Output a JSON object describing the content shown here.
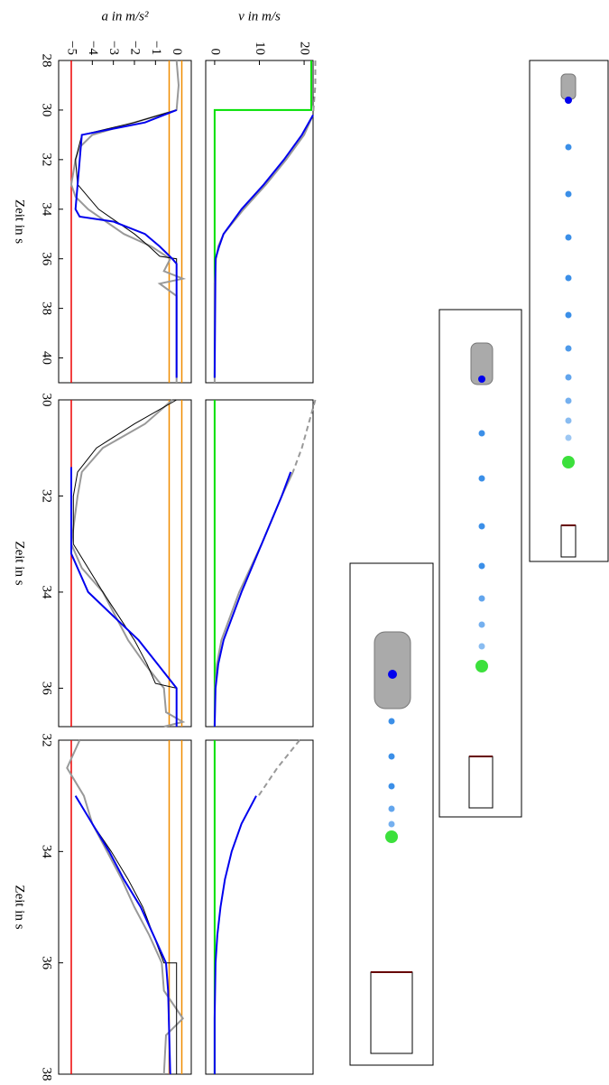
{
  "chart_data": [
    {
      "type": "line",
      "ylabel": "v in m/s",
      "xlim": [
        28,
        41
      ],
      "ylim": [
        -2,
        22
      ],
      "yticks": [
        0,
        10,
        20
      ],
      "series": [
        {
          "color": "#00e000",
          "x": [
            28,
            30,
            30,
            40.8
          ],
          "values": [
            21.6,
            21.6,
            0,
            0
          ]
        },
        {
          "color": "#999999",
          "dashed": true,
          "x": [
            28,
            29,
            30.2
          ],
          "values": [
            22.5,
            22.5,
            22
          ]
        },
        {
          "color": "#999999",
          "x": [
            30.2,
            31,
            32,
            33,
            34,
            35,
            35.5,
            36,
            37,
            41
          ],
          "values": [
            22,
            20,
            16,
            11.5,
            6.5,
            2,
            0.8,
            0.3,
            0,
            0
          ]
        },
        {
          "color": "#0000ee",
          "x": [
            30.2,
            31,
            32,
            33,
            34,
            35,
            35.5,
            36,
            40.8
          ],
          "values": [
            22,
            19.5,
            15.5,
            11,
            6,
            2,
            1,
            0.2,
            0
          ]
        }
      ]
    },
    {
      "type": "line",
      "ylabel": "a in m/s²",
      "xlabel": "Zeit in s",
      "xlim": [
        28,
        41
      ],
      "ylim": [
        -5.6,
        0.7
      ],
      "yticks": [
        {
          "value": -5,
          "label": "−5"
        },
        {
          "value": -4,
          "label": "−4"
        },
        {
          "value": -3,
          "label": "−3"
        },
        {
          "value": -2,
          "label": "−2"
        },
        {
          "value": -1,
          "label": "−1"
        },
        0
      ],
      "xticks": [
        28,
        30,
        32,
        34,
        36,
        38,
        40
      ],
      "hlines": [
        {
          "value": -5,
          "color": "#ee0000"
        },
        {
          "value": -0.35,
          "color": "#f08c00"
        },
        {
          "value": 0.25,
          "color": "#f08c00"
        }
      ],
      "series": [
        {
          "color": "#999999",
          "x": [
            28,
            29,
            30,
            30.5,
            31,
            31.5,
            32,
            33,
            33.5,
            34,
            35,
            35.5,
            36,
            36.5,
            36.8,
            37,
            37.5,
            41
          ],
          "values": [
            0,
            0.1,
            0,
            -2,
            -4,
            -4.6,
            -4.8,
            -5,
            -4.8,
            -4.2,
            -2.5,
            -1.2,
            -0.3,
            -0.6,
            0.3,
            -0.8,
            0,
            0
          ]
        },
        {
          "color": "#000000",
          "x": [
            30,
            30.5,
            31,
            32,
            33,
            34,
            35,
            35.5,
            35.9,
            36,
            40.8
          ],
          "values": [
            0,
            -2,
            -4.5,
            -4.8,
            -4.7,
            -3.7,
            -2,
            -1.3,
            -0.8,
            0,
            0
          ]
        },
        {
          "color": "#0000ee",
          "x": [
            30,
            30.5,
            31,
            34,
            34.3,
            34.5,
            35,
            35.5,
            36,
            36.2,
            40.8
          ],
          "values": [
            0,
            -1.5,
            -4.5,
            -4.8,
            -4.6,
            -3,
            -1.5,
            -0.8,
            -0.2,
            0,
            0
          ]
        }
      ]
    },
    {
      "type": "line",
      "xlim": [
        30,
        36.8
      ],
      "ylim": [
        -2,
        22
      ],
      "series": [
        {
          "color": "#00e000",
          "x": [
            30,
            36.8
          ],
          "values": [
            0,
            0
          ]
        },
        {
          "color": "#999999",
          "dashed": true,
          "x": [
            30,
            30.5,
            31,
            31.5
          ],
          "values": [
            22.5,
            21,
            19.5,
            17.5
          ]
        },
        {
          "color": "#999999",
          "x": [
            31.5,
            32,
            33,
            34,
            35,
            35.5,
            36,
            36.8
          ],
          "values": [
            17.5,
            15,
            10.5,
            5.5,
            1.5,
            0.5,
            0.1,
            0
          ]
        },
        {
          "color": "#0000ee",
          "x": [
            31.5,
            32,
            33,
            34,
            35,
            35.5,
            36,
            36.8
          ],
          "values": [
            17,
            15,
            10.5,
            6,
            2,
            0.8,
            0.2,
            0
          ]
        }
      ]
    },
    {
      "type": "line",
      "xlabel": "Zeit in s",
      "xlim": [
        30,
        36.8
      ],
      "ylim": [
        -5.6,
        0.7
      ],
      "xticks": [
        30,
        32,
        34,
        36
      ],
      "hlines": [
        {
          "value": -5,
          "color": "#ee0000"
        },
        {
          "value": -0.35,
          "color": "#f08c00"
        },
        {
          "value": 0.25,
          "color": "#f08c00"
        }
      ],
      "series": [
        {
          "color": "#999999",
          "x": [
            30,
            30.5,
            31,
            31.5,
            32,
            33,
            33.5,
            34,
            35,
            35.5,
            36,
            36.5,
            36.7,
            36.8
          ],
          "values": [
            -0.2,
            -1.5,
            -3.5,
            -4.5,
            -4.7,
            -5,
            -4.5,
            -3.5,
            -2.3,
            -1.5,
            -0.6,
            -0.5,
            0.3,
            -0.6
          ]
        },
        {
          "color": "#000000",
          "x": [
            30,
            30.5,
            31,
            31.5,
            32,
            33,
            34,
            35,
            35.5,
            35.9,
            36,
            36.8
          ],
          "values": [
            0,
            -2,
            -3.8,
            -4.7,
            -4.9,
            -4.9,
            -3.5,
            -2,
            -1.4,
            -1,
            0,
            0
          ]
        },
        {
          "color": "#0000ee",
          "x": [
            31.4,
            33.2,
            34,
            34.5,
            35,
            35.5,
            36,
            36.8
          ],
          "values": [
            -5,
            -5,
            -4.2,
            -3,
            -1.8,
            -0.9,
            0,
            0
          ]
        }
      ]
    },
    {
      "type": "line",
      "xlim": [
        32,
        38
      ],
      "ylim": [
        -2,
        22
      ],
      "series": [
        {
          "color": "#00e000",
          "x": [
            32,
            38
          ],
          "values": [
            0,
            0
          ]
        },
        {
          "color": "#999999",
          "dashed": true,
          "x": [
            32,
            32.5,
            33
          ],
          "values": [
            19,
            14,
            9.8
          ]
        },
        {
          "color": "#0000ee",
          "x": [
            33,
            33.5,
            34,
            34.5,
            35,
            35.5,
            36,
            37,
            38
          ],
          "values": [
            9.3,
            6,
            3.8,
            2.3,
            1.3,
            0.6,
            0.2,
            0,
            0
          ]
        }
      ]
    },
    {
      "type": "line",
      "xlabel": "Zeit in s",
      "xlim": [
        32,
        38
      ],
      "ylim": [
        -5.6,
        0.7
      ],
      "xticks": [
        32,
        34,
        36,
        38
      ],
      "hlines": [
        {
          "value": -5,
          "color": "#ee0000"
        },
        {
          "value": -0.35,
          "color": "#f08c00"
        },
        {
          "value": 0.25,
          "color": "#f08c00"
        }
      ],
      "series": [
        {
          "color": "#999999",
          "x": [
            32,
            32.5,
            33,
            33.5,
            34,
            34.5,
            35,
            35.5,
            36,
            36.5,
            37,
            37.3,
            38
          ],
          "values": [
            -4.6,
            -5.2,
            -4.4,
            -4,
            -3.3,
            -2.6,
            -2,
            -1.3,
            -0.7,
            -0.6,
            0.3,
            -0.5,
            -0.6
          ]
        },
        {
          "color": "#000000",
          "x": [
            33,
            33.5,
            34,
            34.5,
            35,
            35.5,
            36,
            36,
            38
          ],
          "values": [
            -4.8,
            -4,
            -3.1,
            -2.3,
            -1.6,
            -1.1,
            -0.6,
            0,
            0
          ]
        },
        {
          "color": "#0000ee",
          "x": [
            33,
            33.5,
            34,
            34.5,
            35,
            35.5,
            36,
            36.5,
            38
          ],
          "values": [
            -4.8,
            -4,
            -3.2,
            -2.5,
            -1.7,
            -1.1,
            -0.5,
            -0.4,
            -0.3
          ]
        }
      ]
    }
  ]
}
